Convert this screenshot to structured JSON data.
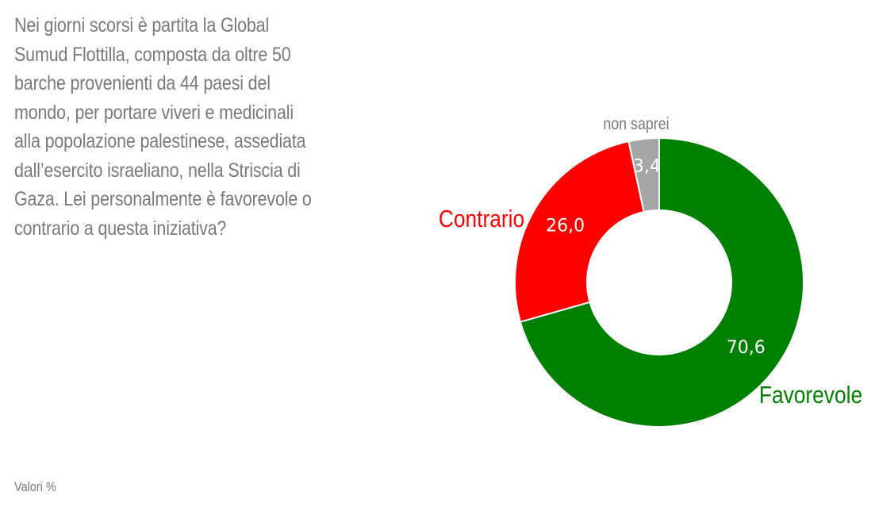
{
  "question": "Nei giorni scorsi è partita la Global Sumud Flottilla, composta da oltre 50 barche provenienti da 44 paesi del mondo, per portare viveri e medicinali alla popolazione palestinese, assediata dall’esercito israeliano, nella Striscia di Gaza. Lei personalmente è favorevole o contrario a questa iniziativa?",
  "footnote": "Valori %",
  "chart_data": {
    "type": "pie",
    "variant": "donut",
    "title": "",
    "unit": "%",
    "slices": [
      {
        "label": "Favorevole",
        "value": 70.6,
        "display": "70,6",
        "color": "#008000"
      },
      {
        "label": "Contrario",
        "value": 26.0,
        "display": "26,0",
        "color": "#ff0000"
      },
      {
        "label": "non saprei",
        "value": 3.4,
        "display": "3,4",
        "color": "#a6a6a6"
      }
    ],
    "legend": "none"
  }
}
